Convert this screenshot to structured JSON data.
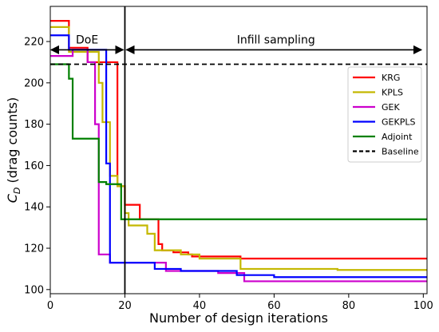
{
  "chart_data": {
    "type": "line",
    "step": true,
    "xlabel": "Number of design iterations",
    "ylabel_main": "C",
    "ylabel_sub": "D",
    "ylabel_rest": " (drag counts)",
    "xlim": [
      0,
      101
    ],
    "ylim": [
      98,
      237
    ],
    "xticks": [
      0,
      20,
      40,
      60,
      80,
      100
    ],
    "yticks": [
      100,
      120,
      140,
      160,
      180,
      200,
      220
    ],
    "xtick_labels": [
      "0",
      "20",
      "40",
      "60",
      "80",
      "100"
    ],
    "ytick_labels": [
      "100",
      "120",
      "140",
      "160",
      "180",
      "200",
      "220"
    ],
    "legend_position": "upper right",
    "baseline": {
      "name": "Baseline",
      "value": 209,
      "color": "#000000"
    },
    "doe_end": 20,
    "annotations": {
      "doe": {
        "text": "DoE",
        "from": 0,
        "to": 20,
        "y": 216
      },
      "infill": {
        "text": "Infill sampling",
        "from": 20,
        "to": 101,
        "y": 216
      }
    },
    "series": [
      {
        "name": "KRG",
        "color": "#ff0000",
        "points": [
          [
            0,
            230
          ],
          [
            5,
            230
          ],
          [
            5,
            217
          ],
          [
            10,
            217
          ],
          [
            10,
            210
          ],
          [
            18,
            210
          ],
          [
            18,
            150
          ],
          [
            20,
            150
          ],
          [
            20,
            141
          ],
          [
            24,
            141
          ],
          [
            24,
            134
          ],
          [
            29,
            134
          ],
          [
            29,
            122
          ],
          [
            30,
            122
          ],
          [
            30,
            119
          ],
          [
            33,
            119
          ],
          [
            33,
            118
          ],
          [
            37,
            118
          ],
          [
            37,
            117
          ],
          [
            38,
            117
          ],
          [
            38,
            116
          ],
          [
            51,
            116
          ],
          [
            51,
            115
          ],
          [
            101,
            115
          ]
        ]
      },
      {
        "name": "KPLS",
        "color": "#c4b800",
        "points": [
          [
            0,
            227
          ],
          [
            5,
            227
          ],
          [
            5,
            215
          ],
          [
            13,
            215
          ],
          [
            13,
            200
          ],
          [
            14,
            200
          ],
          [
            14,
            181
          ],
          [
            16,
            181
          ],
          [
            16,
            155
          ],
          [
            18,
            155
          ],
          [
            18,
            150
          ],
          [
            20,
            150
          ],
          [
            20,
            137
          ],
          [
            21,
            137
          ],
          [
            21,
            131
          ],
          [
            26,
            131
          ],
          [
            26,
            127
          ],
          [
            28,
            127
          ],
          [
            28,
            119
          ],
          [
            35,
            119
          ],
          [
            35,
            117
          ],
          [
            40,
            117
          ],
          [
            40,
            115
          ],
          [
            51,
            115
          ],
          [
            51,
            110
          ],
          [
            77,
            110
          ],
          [
            77,
            109.5
          ],
          [
            101,
            109.5
          ]
        ]
      },
      {
        "name": "GEK",
        "color": "#cc00cc",
        "points": [
          [
            0,
            213
          ],
          [
            6,
            213
          ],
          [
            6,
            216
          ],
          [
            10,
            216
          ],
          [
            10,
            210
          ],
          [
            12,
            210
          ],
          [
            12,
            180
          ],
          [
            13,
            180
          ],
          [
            13,
            117
          ],
          [
            16,
            117
          ],
          [
            16,
            113
          ],
          [
            31,
            113
          ],
          [
            31,
            109
          ],
          [
            45,
            109
          ],
          [
            45,
            108
          ],
          [
            52,
            108
          ],
          [
            52,
            104
          ],
          [
            101,
            104
          ]
        ]
      },
      {
        "name": "GEKPLS",
        "color": "#0000ff",
        "points": [
          [
            0,
            223
          ],
          [
            5,
            223
          ],
          [
            5,
            216
          ],
          [
            15,
            216
          ],
          [
            15,
            161
          ],
          [
            16,
            161
          ],
          [
            16,
            113
          ],
          [
            28,
            113
          ],
          [
            28,
            110
          ],
          [
            35,
            110
          ],
          [
            35,
            109
          ],
          [
            50,
            109
          ],
          [
            50,
            107
          ],
          [
            60,
            107
          ],
          [
            60,
            106
          ],
          [
            101,
            106
          ]
        ]
      },
      {
        "name": "Adjoint",
        "color": "#008000",
        "points": [
          [
            0,
            209
          ],
          [
            5,
            209
          ],
          [
            5,
            202
          ],
          [
            6,
            202
          ],
          [
            6,
            173
          ],
          [
            13,
            173
          ],
          [
            13,
            152
          ],
          [
            15,
            152
          ],
          [
            15,
            151
          ],
          [
            19,
            151
          ],
          [
            19,
            134
          ],
          [
            101,
            134
          ]
        ]
      }
    ]
  }
}
